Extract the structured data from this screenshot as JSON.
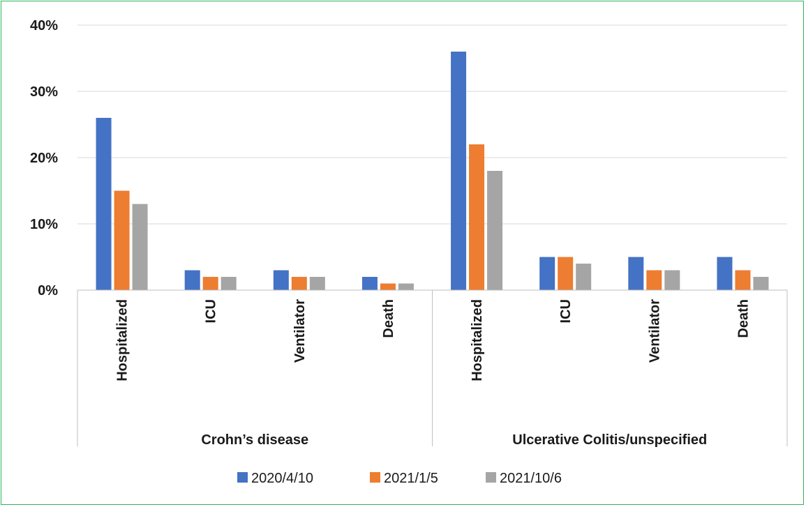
{
  "chart_data": {
    "type": "bar",
    "title": "",
    "xlabel": "",
    "ylabel": "",
    "ylim": [
      0,
      40
    ],
    "y_ticks": [
      "0%",
      "10%",
      "20%",
      "30%",
      "40%"
    ],
    "grid": true,
    "legend_position": "bottom",
    "groups": [
      {
        "label": "Crohn’s disease",
        "categories": [
          "Hospitalized",
          "ICU",
          "Ventilator",
          "Death"
        ]
      },
      {
        "label": "Ulcerative Colitis/unspecified",
        "categories": [
          "Hospitalized",
          "ICU",
          "Ventilator",
          "Death"
        ]
      }
    ],
    "series": [
      {
        "name": "2020/4/10",
        "color": "#4472c4",
        "values": [
          26,
          3,
          3,
          2,
          36,
          5,
          5,
          5
        ]
      },
      {
        "name": "2021/1/5",
        "color": "#ed7d31",
        "values": [
          15,
          2,
          2,
          1,
          22,
          5,
          3,
          3
        ]
      },
      {
        "name": "2021/10/6",
        "color": "#a5a5a5",
        "values": [
          13,
          2,
          2,
          1,
          18,
          4,
          3,
          2
        ]
      }
    ]
  }
}
